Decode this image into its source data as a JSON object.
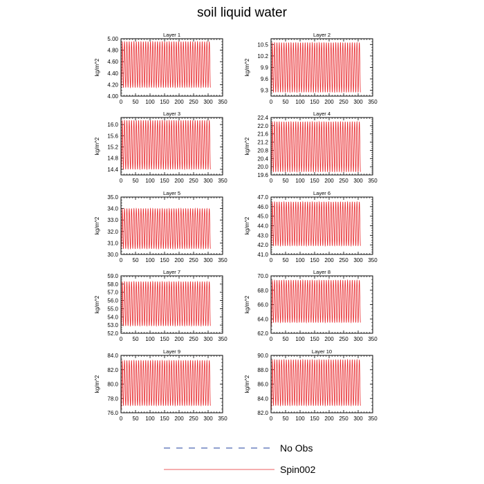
{
  "figure": {
    "title": "soil liquid water"
  },
  "legend": [
    {
      "name": "No Obs",
      "color": "#1f3f9f",
      "style": "dashed"
    },
    {
      "name": "Spin002",
      "color": "#e8262a",
      "style": "solid"
    }
  ],
  "chart_data": [
    {
      "type": "line",
      "title": "Layer 1",
      "ylabel": "kg/m^2",
      "xlim": [
        0,
        350
      ],
      "ylim": [
        4.0,
        5.0
      ],
      "xticks": [
        0,
        50,
        100,
        150,
        200,
        250,
        300,
        350
      ],
      "yticks": [
        "4.00",
        "4.20",
        "4.40",
        "4.60",
        "4.80",
        "5.00"
      ],
      "series": [
        {
          "name": "Spin002",
          "color": "#e8262a",
          "x_range": [
            0,
            308
          ],
          "low": 4.15,
          "high": 4.95,
          "start": 4.15,
          "cycles": 38
        }
      ]
    },
    {
      "type": "line",
      "title": "Layer 2",
      "ylabel": "kg/m^2",
      "xlim": [
        0,
        350
      ],
      "ylim": [
        9.15,
        10.65
      ],
      "xticks": [
        0,
        50,
        100,
        150,
        200,
        250,
        300,
        350
      ],
      "yticks": [
        "9.3",
        "9.6",
        "9.9",
        "10.2",
        "10.5"
      ],
      "series": [
        {
          "name": "Spin002",
          "color": "#e8262a",
          "x_range": [
            0,
            308
          ],
          "low": 9.25,
          "high": 10.55,
          "start": 9.25,
          "cycles": 38
        }
      ]
    },
    {
      "type": "line",
      "title": "Layer 3",
      "ylabel": "kg/m^2",
      "xlim": [
        0,
        350
      ],
      "ylim": [
        14.2,
        16.25
      ],
      "xticks": [
        0,
        50,
        100,
        150,
        200,
        250,
        300,
        350
      ],
      "yticks": [
        "14.4",
        "14.8",
        "15.2",
        "15.6",
        "16.0"
      ],
      "series": [
        {
          "name": "Spin002",
          "color": "#e8262a",
          "x_range": [
            0,
            308
          ],
          "low": 14.4,
          "high": 16.15,
          "start": 14.4,
          "cycles": 38
        }
      ]
    },
    {
      "type": "line",
      "title": "Layer 4",
      "ylabel": "kg/m^2",
      "xlim": [
        0,
        350
      ],
      "ylim": [
        19.6,
        22.4
      ],
      "xticks": [
        0,
        50,
        100,
        150,
        200,
        250,
        300,
        350
      ],
      "yticks": [
        "19.6",
        "20.0",
        "20.4",
        "20.8",
        "21.2",
        "21.6",
        "22.0",
        "22.4"
      ],
      "series": [
        {
          "name": "Spin002",
          "color": "#e8262a",
          "x_range": [
            0,
            308
          ],
          "low": 19.75,
          "high": 22.2,
          "start": 19.75,
          "cycles": 38
        }
      ]
    },
    {
      "type": "line",
      "title": "Layer 5",
      "ylabel": "kg/m^2",
      "xlim": [
        0,
        350
      ],
      "ylim": [
        30.0,
        35.0
      ],
      "xticks": [
        0,
        50,
        100,
        150,
        200,
        250,
        300,
        350
      ],
      "yticks": [
        "30.0",
        "31.0",
        "32.0",
        "33.0",
        "34.0",
        "35.0"
      ],
      "series": [
        {
          "name": "Spin002",
          "color": "#e8262a",
          "x_range": [
            0,
            308
          ],
          "low": 30.5,
          "high": 34.0,
          "start": 30.5,
          "cycles": 38
        }
      ]
    },
    {
      "type": "line",
      "title": "Layer 6",
      "ylabel": "kg/m^2",
      "xlim": [
        0,
        350
      ],
      "ylim": [
        41.0,
        47.0
      ],
      "xticks": [
        0,
        50,
        100,
        150,
        200,
        250,
        300,
        350
      ],
      "yticks": [
        "41.0",
        "42.0",
        "43.0",
        "44.0",
        "45.0",
        "46.0",
        "47.0"
      ],
      "series": [
        {
          "name": "Spin002",
          "color": "#e8262a",
          "x_range": [
            0,
            308
          ],
          "low": 41.9,
          "high": 46.5,
          "start": 41.9,
          "cycles": 38
        }
      ]
    },
    {
      "type": "line",
      "title": "Layer 7",
      "ylabel": "kg/m^2",
      "xlim": [
        0,
        350
      ],
      "ylim": [
        52.0,
        59.0
      ],
      "xticks": [
        0,
        50,
        100,
        150,
        200,
        250,
        300,
        350
      ],
      "yticks": [
        "52.0",
        "53.0",
        "54.0",
        "55.0",
        "56.0",
        "57.0",
        "58.0",
        "59.0"
      ],
      "series": [
        {
          "name": "Spin002",
          "color": "#e8262a",
          "x_range": [
            0,
            308
          ],
          "low": 52.9,
          "high": 58.3,
          "start": 52.9,
          "cycles": 38
        }
      ]
    },
    {
      "type": "line",
      "title": "Layer 8",
      "ylabel": "kg/m^2",
      "xlim": [
        0,
        350
      ],
      "ylim": [
        62.0,
        70.0
      ],
      "xticks": [
        0,
        50,
        100,
        150,
        200,
        250,
        300,
        350
      ],
      "yticks": [
        "62.0",
        "64.0",
        "66.0",
        "68.0",
        "70.0"
      ],
      "series": [
        {
          "name": "Spin002",
          "color": "#e8262a",
          "x_range": [
            0,
            308
          ],
          "low": 63.5,
          "high": 69.4,
          "start": 62.8,
          "cycles": 38
        }
      ]
    },
    {
      "type": "line",
      "title": "Layer 9",
      "ylabel": "kg/m^2",
      "xlim": [
        0,
        350
      ],
      "ylim": [
        76.0,
        84.0
      ],
      "xticks": [
        0,
        50,
        100,
        150,
        200,
        250,
        300,
        350
      ],
      "yticks": [
        "76.0",
        "78.0",
        "80.0",
        "82.0",
        "84.0"
      ],
      "series": [
        {
          "name": "Spin002",
          "color": "#e8262a",
          "x_range": [
            0,
            308
          ],
          "low": 77.0,
          "high": 83.3,
          "start": 76.4,
          "cycles": 38
        }
      ]
    },
    {
      "type": "line",
      "title": "Layer 10",
      "ylabel": "kg/m^2",
      "xlim": [
        0,
        350
      ],
      "ylim": [
        82.0,
        90.0
      ],
      "xticks": [
        0,
        50,
        100,
        150,
        200,
        250,
        300,
        350
      ],
      "yticks": [
        "82.0",
        "84.0",
        "86.0",
        "88.0",
        "90.0"
      ],
      "series": [
        {
          "name": "Spin002",
          "color": "#e8262a",
          "x_range": [
            0,
            308
          ],
          "low": 83.0,
          "high": 89.4,
          "start": 82.3,
          "cycles": 38
        }
      ]
    }
  ]
}
